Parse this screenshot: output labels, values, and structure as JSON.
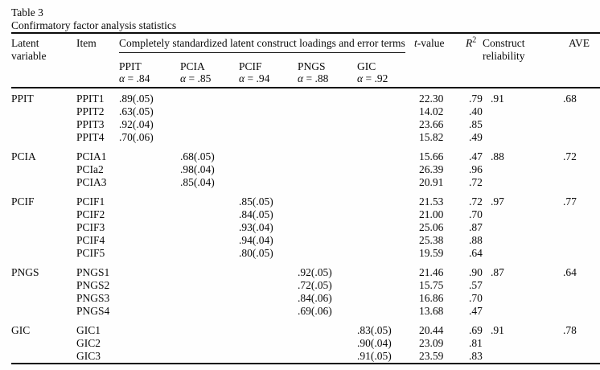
{
  "caption": {
    "label": "Table 3",
    "title": "Confirmatory factor analysis statistics"
  },
  "table": {
    "headers": {
      "latent_variable": "Latent variable",
      "item": "Item",
      "loadings_span": "Completely standardized latent construct loadings and error terms",
      "t_value_italic": "t",
      "t_value_rest": "-value",
      "r_squared_base": "R",
      "r_squared_sup": "2",
      "construct_reliability": "Construct reliability",
      "ave": "AVE"
    },
    "constructs": [
      {
        "name": "PPIT",
        "alpha_symbol": "α",
        "alpha_eq": "= .84"
      },
      {
        "name": "PCIA",
        "alpha_symbol": "α",
        "alpha_eq": "= .85"
      },
      {
        "name": "PCIF",
        "alpha_symbol": "α",
        "alpha_eq": "= .94"
      },
      {
        "name": "PNGS",
        "alpha_symbol": "α",
        "alpha_eq": "= .88"
      },
      {
        "name": "GIC",
        "alpha_symbol": "α",
        "alpha_eq": "= .92"
      }
    ],
    "groups": [
      {
        "latent": "PPIT",
        "construct_reliability": ".91",
        "ave": ".68",
        "rows": [
          {
            "item": "PPIT1",
            "loading": ".89(.05)",
            "t_value": "22.30",
            "r_squared": ".79"
          },
          {
            "item": "PPIT2",
            "loading": ".63(.05)",
            "t_value": "14.02",
            "r_squared": ".40"
          },
          {
            "item": "PPIT3",
            "loading": ".92(.04)",
            "t_value": "23.66",
            "r_squared": ".85"
          },
          {
            "item": "PPIT4",
            "loading": ".70(.06)",
            "t_value": "15.82",
            "r_squared": ".49"
          }
        ]
      },
      {
        "latent": "PCIA",
        "construct_reliability": ".88",
        "ave": ".72",
        "rows": [
          {
            "item": "PCIA1",
            "loading": ".68(.05)",
            "t_value": "15.66",
            "r_squared": ".47"
          },
          {
            "item": "PCIa2",
            "loading": ".98(.04)",
            "t_value": "26.39",
            "r_squared": ".96"
          },
          {
            "item": "PCIA3",
            "loading": ".85(.04)",
            "t_value": "20.91",
            "r_squared": ".72"
          }
        ]
      },
      {
        "latent": "PCIF",
        "construct_reliability": ".97",
        "ave": ".77",
        "rows": [
          {
            "item": "PCIF1",
            "loading": ".85(.05)",
            "t_value": "21.53",
            "r_squared": ".72"
          },
          {
            "item": "PCIF2",
            "loading": ".84(.05)",
            "t_value": "21.00",
            "r_squared": ".70"
          },
          {
            "item": "PCIF3",
            "loading": ".93(.04)",
            "t_value": "25.06",
            "r_squared": ".87"
          },
          {
            "item": "PCIF4",
            "loading": ".94(.04)",
            "t_value": "25.38",
            "r_squared": ".88"
          },
          {
            "item": "PCIF5",
            "loading": ".80(.05)",
            "t_value": "19.59",
            "r_squared": ".64"
          }
        ]
      },
      {
        "latent": "PNGS",
        "construct_reliability": ".87",
        "ave": ".64",
        "rows": [
          {
            "item": "PNGS1",
            "loading": ".92(.05)",
            "t_value": "21.46",
            "r_squared": ".90"
          },
          {
            "item": "PNGS2",
            "loading": ".72(.05)",
            "t_value": "15.75",
            "r_squared": ".57"
          },
          {
            "item": "PNGS3",
            "loading": ".84(.06)",
            "t_value": "16.86",
            "r_squared": ".70"
          },
          {
            "item": "PNGS4",
            "loading": ".69(.06)",
            "t_value": "13.68",
            "r_squared": ".47"
          }
        ]
      },
      {
        "latent": "GIC",
        "construct_reliability": ".91",
        "ave": ".78",
        "rows": [
          {
            "item": "GIC1",
            "loading": ".83(.05)",
            "t_value": "20.44",
            "r_squared": ".69"
          },
          {
            "item": "GIC2",
            "loading": ".90(.04)",
            "t_value": "23.09",
            "r_squared": ".81"
          },
          {
            "item": "GIC3",
            "loading": ".91(.05)",
            "t_value": "23.59",
            "r_squared": ".83"
          }
        ]
      }
    ]
  }
}
